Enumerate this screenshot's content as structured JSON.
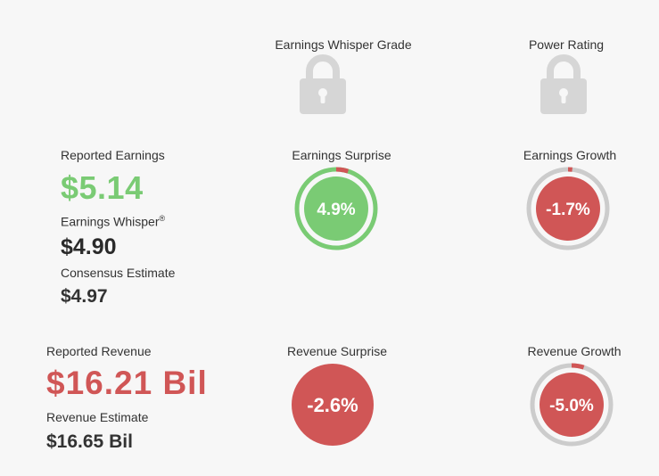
{
  "grades": {
    "whisper_grade_label": "Earnings Whisper Grade",
    "power_rating_label": "Power Rating",
    "lock_icon": "lock-icon"
  },
  "earnings": {
    "reported_label": "Reported Earnings",
    "reported_value": "$5.14",
    "whisper_label": "Earnings Whisper",
    "whisper_mark": "®",
    "whisper_value": "$4.90",
    "consensus_label": "Consensus Estimate",
    "consensus_value": "$4.97",
    "surprise_label": "Earnings Surprise",
    "surprise_value": "4.9%",
    "surprise_fraction": 0.049,
    "growth_label": "Earnings Growth",
    "growth_value": "-1.7%",
    "growth_fraction": 0.017
  },
  "revenue": {
    "reported_label": "Reported Revenue",
    "reported_value": "$16.21 Bil",
    "estimate_label": "Revenue Estimate",
    "estimate_value": "$16.65 Bil",
    "surprise_label": "Revenue Surprise",
    "surprise_value": "-2.6%",
    "growth_label": "Revenue Growth",
    "growth_value": "-5.0%",
    "growth_fraction": 0.05
  },
  "colors": {
    "positive": "#7acb74",
    "negative": "#d05656",
    "track": "#cccccc",
    "lock": "#d6d6d6"
  }
}
